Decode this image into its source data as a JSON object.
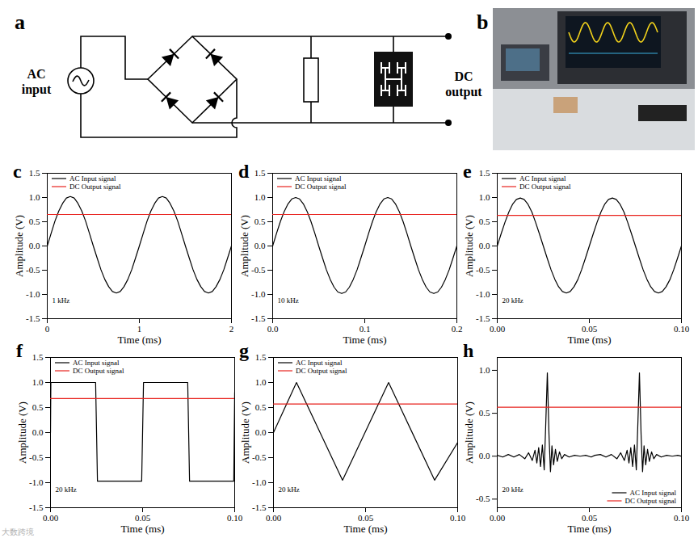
{
  "diagram": {
    "panel_label": "a",
    "source_label": [
      "AC",
      "input"
    ],
    "output_label": [
      "DC",
      "output"
    ]
  },
  "photo": {
    "panel_label": "b"
  },
  "watermark": "大数跨境",
  "chart_data": [
    {
      "type": "line",
      "panel_label": "c",
      "annotation": "1 kHz",
      "x_label": "Time (ms)",
      "y_label": "Amplitude (V)",
      "xlim": [
        0,
        2
      ],
      "xticks": [
        0,
        1,
        2
      ],
      "ylim": [
        -1.5,
        1.5
      ],
      "yticks": [
        -1.5,
        {
          "value": -1,
          "label": "-1.0"
        },
        -0.5,
        {
          "value": 0,
          "label": "0.0"
        },
        0.5,
        {
          "value": 1,
          "label": "1.0"
        },
        1.5
      ],
      "legend": "top-left",
      "series": [
        {
          "name": "AC Input signal",
          "color": "#000000",
          "x": [
            0,
            0.042,
            0.083,
            0.125,
            0.167,
            0.208,
            0.25,
            0.292,
            0.333,
            0.375,
            0.417,
            0.458,
            0.5,
            0.542,
            0.583,
            0.625,
            0.667,
            0.708,
            0.75,
            0.792,
            0.833,
            0.875,
            0.917,
            0.958,
            1,
            1.042,
            1.083,
            1.125,
            1.167,
            1.208,
            1.25,
            1.292,
            1.333,
            1.375,
            1.417,
            1.458,
            1.5,
            1.542,
            1.583,
            1.625,
            1.667,
            1.708,
            1.75,
            1.792,
            1.833,
            1.875,
            1.917,
            1.958,
            2
          ],
          "values": [
            0,
            0.26,
            0.51,
            0.72,
            0.88,
            0.99,
            1.02,
            0.99,
            0.88,
            0.72,
            0.51,
            0.26,
            0,
            -0.25,
            -0.49,
            -0.69,
            -0.84,
            -0.94,
            -0.97,
            -0.94,
            -0.84,
            -0.69,
            -0.49,
            -0.25,
            0,
            0.26,
            0.51,
            0.72,
            0.88,
            0.99,
            1.02,
            0.99,
            0.88,
            0.72,
            0.51,
            0.26,
            0,
            -0.25,
            -0.49,
            -0.69,
            -0.84,
            -0.94,
            -0.97,
            -0.94,
            -0.84,
            -0.69,
            -0.49,
            -0.25,
            0
          ]
        },
        {
          "name": "DC Output signal",
          "color": "#e8231e",
          "x": [
            0,
            2
          ],
          "values": [
            0.65,
            0.65
          ]
        }
      ]
    },
    {
      "type": "line",
      "panel_label": "d",
      "annotation": "10 kHz",
      "x_label": "Time (ms)",
      "y_label": "Amplitude (V)",
      "xlim": [
        0,
        0.2
      ],
      "xticks": [
        {
          "value": 0,
          "label": "0.0"
        },
        0.1,
        0.2
      ],
      "ylim": [
        -1.5,
        1.5
      ],
      "yticks": [
        -1.5,
        {
          "value": -1,
          "label": "-1.0"
        },
        -0.5,
        {
          "value": 0,
          "label": "0.0"
        },
        0.5,
        {
          "value": 1,
          "label": "1.0"
        },
        1.5
      ],
      "legend": "top-left",
      "series": [
        {
          "name": "AC Input signal",
          "color": "#000000",
          "x": [
            0,
            0.0042,
            0.0083,
            0.0125,
            0.0167,
            0.0208,
            0.025,
            0.0292,
            0.0333,
            0.0375,
            0.0417,
            0.0458,
            0.05,
            0.0542,
            0.0583,
            0.0625,
            0.0667,
            0.0708,
            0.075,
            0.0792,
            0.0833,
            0.0875,
            0.0917,
            0.0958,
            0.1,
            0.1042,
            0.1083,
            0.1125,
            0.1167,
            0.1208,
            0.125,
            0.1292,
            0.1333,
            0.1375,
            0.1417,
            0.1458,
            0.15,
            0.1542,
            0.1583,
            0.1625,
            0.1667,
            0.1708,
            0.175,
            0.1792,
            0.1833,
            0.1875,
            0.1917,
            0.1958,
            0.2
          ],
          "values": [
            0,
            0.26,
            0.5,
            0.71,
            0.87,
            0.97,
            1.0,
            0.97,
            0.87,
            0.71,
            0.5,
            0.26,
            0,
            -0.25,
            -0.49,
            -0.69,
            -0.85,
            -0.95,
            -0.98,
            -0.95,
            -0.85,
            -0.69,
            -0.49,
            -0.25,
            0,
            0.26,
            0.5,
            0.71,
            0.87,
            0.97,
            1.0,
            0.97,
            0.87,
            0.71,
            0.5,
            0.26,
            0,
            -0.25,
            -0.49,
            -0.69,
            -0.85,
            -0.95,
            -0.98,
            -0.95,
            -0.85,
            -0.69,
            -0.49,
            -0.25,
            0
          ]
        },
        {
          "name": "DC Output signal",
          "color": "#e8231e",
          "x": [
            0,
            0.2
          ],
          "values": [
            0.65,
            0.65
          ]
        }
      ]
    },
    {
      "type": "line",
      "panel_label": "e",
      "annotation": "20 kHz",
      "x_label": "Time (ms)",
      "y_label": "Amplitude (V)",
      "xlim": [
        0,
        0.1
      ],
      "xticks": [
        {
          "value": 0,
          "label": "0.00"
        },
        0.05,
        {
          "value": 0.1,
          "label": "0.10"
        }
      ],
      "ylim": [
        -1.5,
        1.5
      ],
      "yticks": [
        -1.5,
        {
          "value": -1,
          "label": "-1.0"
        },
        -0.5,
        {
          "value": 0,
          "label": "0.0"
        },
        0.5,
        {
          "value": 1,
          "label": "1.0"
        },
        1.5
      ],
      "legend": "top-left",
      "series": [
        {
          "name": "AC Input signal",
          "color": "#000000",
          "x": [
            0,
            0.0021,
            0.0042,
            0.0063,
            0.0083,
            0.0104,
            0.0125,
            0.0146,
            0.0167,
            0.0188,
            0.0208,
            0.0229,
            0.025,
            0.0271,
            0.0292,
            0.0313,
            0.0333,
            0.0354,
            0.0375,
            0.0396,
            0.0417,
            0.0438,
            0.0458,
            0.0479,
            0.05,
            0.0521,
            0.0542,
            0.0563,
            0.0583,
            0.0604,
            0.0625,
            0.0646,
            0.0667,
            0.0688,
            0.0708,
            0.0729,
            0.075,
            0.0771,
            0.0792,
            0.0813,
            0.0833,
            0.0854,
            0.0875,
            0.0896,
            0.0917,
            0.0938,
            0.0958,
            0.0979,
            0.1
          ],
          "values": [
            0,
            0.25,
            0.49,
            0.7,
            0.86,
            0.96,
            0.99,
            0.96,
            0.86,
            0.7,
            0.49,
            0.25,
            0,
            -0.25,
            -0.49,
            -0.69,
            -0.84,
            -0.94,
            -0.97,
            -0.94,
            -0.84,
            -0.69,
            -0.49,
            -0.25,
            0,
            0.25,
            0.49,
            0.7,
            0.86,
            0.96,
            0.99,
            0.96,
            0.86,
            0.7,
            0.49,
            0.25,
            0,
            -0.25,
            -0.49,
            -0.69,
            -0.84,
            -0.94,
            -0.97,
            -0.94,
            -0.84,
            -0.69,
            -0.49,
            -0.25,
            0
          ]
        },
        {
          "name": "DC Output signal",
          "color": "#e8231e",
          "x": [
            0,
            0.1
          ],
          "values": [
            0.63,
            0.63
          ]
        }
      ]
    },
    {
      "type": "line",
      "panel_label": "f",
      "annotation": "20 kHz",
      "x_label": "Time (ms)",
      "y_label": "Amplitude (V)",
      "xlim": [
        0,
        0.1
      ],
      "xticks": [
        {
          "value": 0,
          "label": "0.00"
        },
        0.05,
        {
          "value": 0.1,
          "label": "0.10"
        }
      ],
      "ylim": [
        -1.5,
        1.5
      ],
      "yticks": [
        -1.5,
        {
          "value": -1,
          "label": "-1.0"
        },
        -0.5,
        {
          "value": 0,
          "label": "0.0"
        },
        0.5,
        {
          "value": 1,
          "label": "1.0"
        },
        1.5
      ],
      "legend": "top-left",
      "series": [
        {
          "name": "AC Input signal",
          "color": "#000000",
          "x": [
            0,
            0.0002,
            0.0245,
            0.0255,
            0.0495,
            0.0505,
            0.0745,
            0.0755,
            0.0995,
            0.1
          ],
          "values": [
            0,
            1.0,
            1.0,
            -0.97,
            -0.97,
            1.0,
            1.0,
            -0.97,
            -0.97,
            0.8
          ]
        },
        {
          "name": "DC Output signal",
          "color": "#e8231e",
          "x": [
            0,
            0.1
          ],
          "values": [
            0.68,
            0.68
          ]
        }
      ]
    },
    {
      "type": "line",
      "panel_label": "g",
      "annotation": "20 kHz",
      "x_label": "Time (ms)",
      "y_label": "Amplitude (V)",
      "xlim": [
        0,
        0.1
      ],
      "xticks": [
        {
          "value": 0,
          "label": "0.00"
        },
        0.05,
        {
          "value": 0.1,
          "label": "0.10"
        }
      ],
      "ylim": [
        -1.5,
        1.5
      ],
      "yticks": [
        -1.5,
        {
          "value": -1,
          "label": "-1.0"
        },
        -0.5,
        {
          "value": 0,
          "label": "0.0"
        },
        0.5,
        {
          "value": 1,
          "label": "1.0"
        },
        1.5
      ],
      "legend": "top-left",
      "series": [
        {
          "name": "AC Input signal",
          "color": "#000000",
          "x": [
            0,
            0.0125,
            0.0375,
            0.0625,
            0.0875,
            0.1
          ],
          "values": [
            0,
            1.0,
            -0.95,
            1.0,
            -0.95,
            -0.2
          ]
        },
        {
          "name": "DC Output signal",
          "color": "#e8231e",
          "x": [
            0,
            0.1
          ],
          "values": [
            0.57,
            0.57
          ]
        }
      ]
    },
    {
      "type": "line",
      "panel_label": "h",
      "annotation": "20 kHz",
      "x_label": "Time (ms)",
      "y_label": "Amplitude (V)",
      "xlim": [
        0,
        0.1
      ],
      "xticks": [
        {
          "value": 0,
          "label": "0.00"
        },
        0.05,
        {
          "value": 0.1,
          "label": "0.10"
        }
      ],
      "ylim": [
        -0.6,
        1.15
      ],
      "yticks": [
        -0.5,
        {
          "value": 0,
          "label": "0.0"
        },
        0.5,
        {
          "value": 1,
          "label": "1.0"
        }
      ],
      "legend": "bottom-right",
      "series": [
        {
          "name": "AC Input signal",
          "color": "#000000",
          "x": [
            0,
            0.003,
            0.006,
            0.009,
            0.012,
            0.015,
            0.017,
            0.019,
            0.0205,
            0.0215,
            0.0225,
            0.0235,
            0.0245,
            0.0255,
            0.0263,
            0.0272,
            0.0281,
            0.0289,
            0.0297,
            0.0306,
            0.0316,
            0.0326,
            0.0338,
            0.035,
            0.0365,
            0.039,
            0.042,
            0.045,
            0.048,
            0.051,
            0.053,
            0.056,
            0.059,
            0.062,
            0.065,
            0.067,
            0.069,
            0.0705,
            0.0715,
            0.0725,
            0.0735,
            0.0745,
            0.0755,
            0.0763,
            0.0772,
            0.0781,
            0.0789,
            0.0797,
            0.0806,
            0.0816,
            0.0826,
            0.0838,
            0.085,
            0.0865,
            0.089,
            0.092,
            0.095,
            0.098,
            0.1
          ],
          "values": [
            0.01,
            -0.01,
            0.02,
            -0.01,
            0.02,
            -0.03,
            0.04,
            -0.05,
            0.07,
            -0.08,
            0.1,
            -0.12,
            0.13,
            -0.16,
            0.35,
            0.97,
            0.25,
            -0.18,
            0.12,
            -0.1,
            0.08,
            -0.06,
            0.05,
            -0.03,
            0.02,
            -0.01,
            0.01,
            0,
            0.01,
            -0.01,
            0.01,
            0.02,
            -0.01,
            0.02,
            -0.03,
            0.04,
            -0.05,
            0.07,
            -0.08,
            0.1,
            -0.12,
            0.13,
            -0.16,
            0.35,
            0.97,
            0.25,
            -0.18,
            0.12,
            -0.1,
            0.08,
            -0.06,
            0.05,
            -0.03,
            0.02,
            -0.01,
            0.01,
            0,
            0.01,
            0
          ]
        },
        {
          "name": "DC Output signal",
          "color": "#e8231e",
          "x": [
            0,
            0.1
          ],
          "values": [
            0.57,
            0.57
          ]
        }
      ]
    }
  ]
}
